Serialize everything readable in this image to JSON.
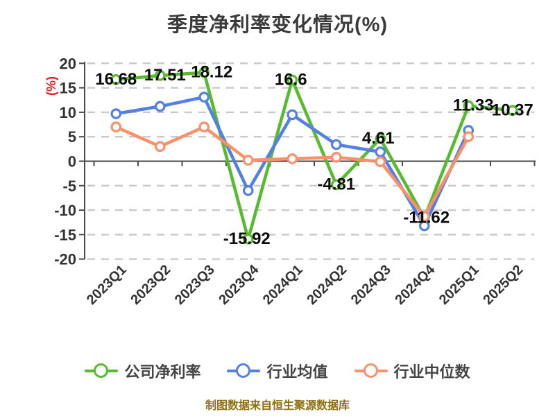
{
  "caption": "制图数据来自恒生聚源数据库",
  "colors": {
    "company": "#58bb2e",
    "industry_mean": "#5480e4",
    "industry_median": "#f6916c",
    "grid": "#c9c9c9",
    "axis": "#4a4a4a",
    "tick_label": "#333333",
    "data_label": "#0d0d0d",
    "title": "#3a3a3a",
    "ylabel_red": "#e42222",
    "caption_gold": "#8e6e0f"
  },
  "chart_data": {
    "type": "line",
    "title": "季度净利率变化情况(%)",
    "ylabel": "(%)",
    "xlabel": "",
    "ylim": [
      -20,
      20
    ],
    "yticks": [
      20,
      15,
      10,
      5,
      0,
      -5,
      -10,
      -15,
      -20
    ],
    "grid": true,
    "grid_style": "dashed",
    "legend_position": "bottom",
    "categories": [
      "2023Q1",
      "2023Q2",
      "2023Q3",
      "2023Q4",
      "2024Q1",
      "2024Q2",
      "2024Q3",
      "2024Q4",
      "2025Q1",
      "2025Q2"
    ],
    "series": [
      {
        "name": "公司净利率",
        "color": "#58bb2e",
        "values": [
          16.68,
          17.51,
          18.12,
          -15.92,
          16.6,
          -4.81,
          4.61,
          -11.62,
          11.33,
          10.37
        ],
        "point_labels": [
          "16.68",
          "17.51",
          "18.12",
          "-15.92",
          "16.6",
          "-4.81",
          "4.61",
          "-11.62",
          "11.33",
          "10.37"
        ],
        "last_segment_dashed": true
      },
      {
        "name": "行业均值",
        "color": "#5480e4",
        "values": [
          9.7,
          11.2,
          13.1,
          -6.0,
          9.5,
          3.4,
          1.9,
          -13.2,
          6.3,
          null
        ],
        "point_labels": [],
        "last_segment_dashed": false
      },
      {
        "name": "行业中位数",
        "color": "#f6916c",
        "values": [
          7.0,
          3.0,
          7.0,
          0.2,
          0.5,
          0.8,
          -0.1,
          -11.3,
          5.0,
          null
        ],
        "point_labels": [],
        "last_segment_dashed": false
      }
    ]
  }
}
